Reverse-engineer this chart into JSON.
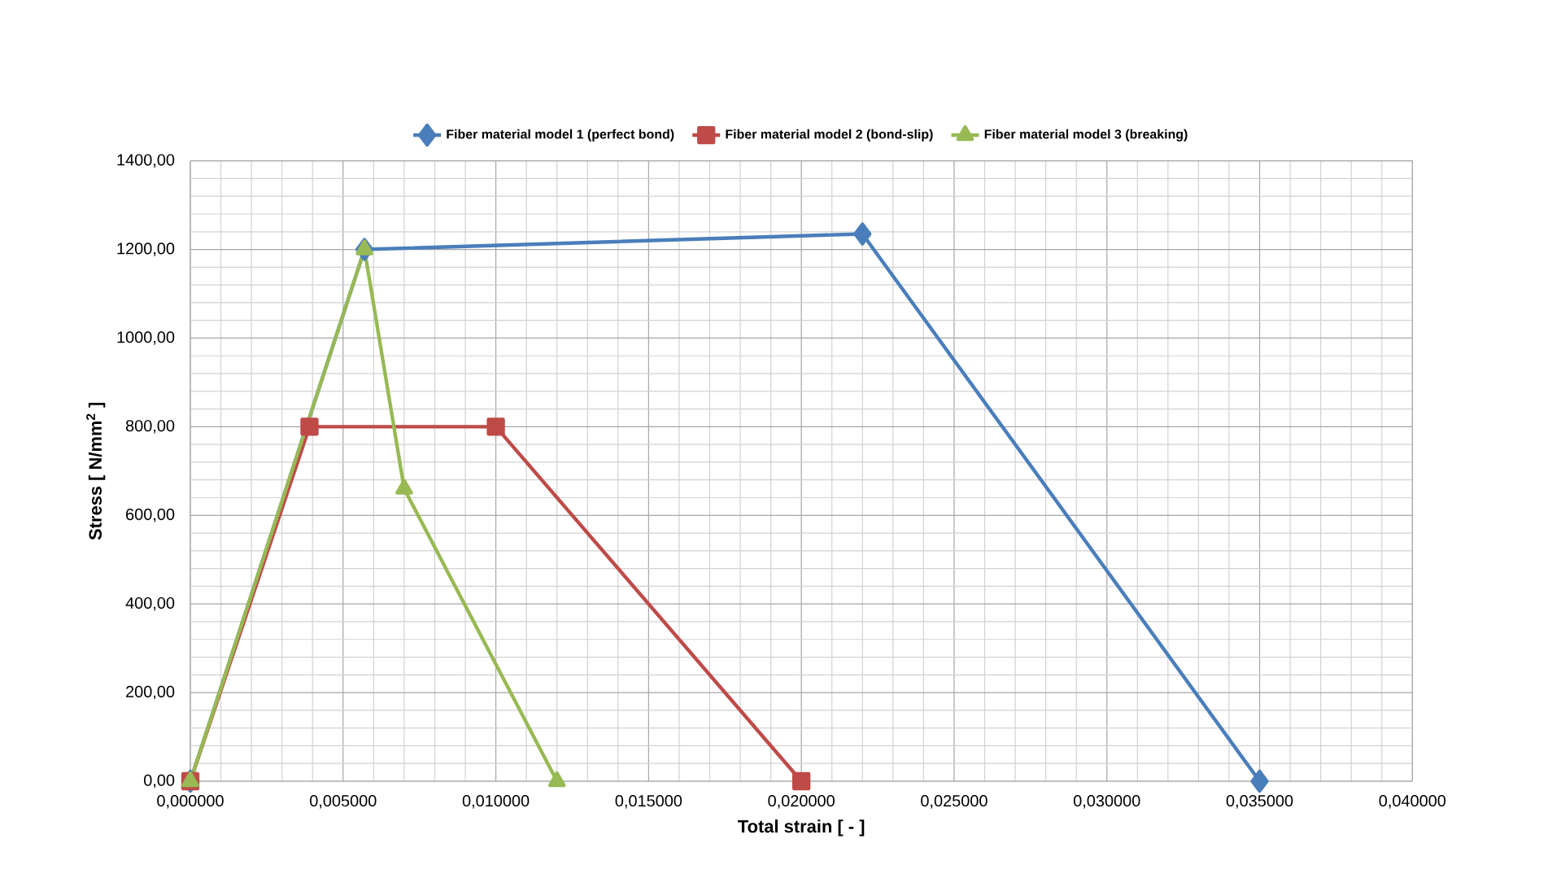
{
  "chart_data": {
    "type": "line",
    "xlabel": "Total strain  [ - ]",
    "ylabel": "Stress  [ N/mm$^{2}$ ]",
    "xlim": [
      0,
      0.04
    ],
    "ylim": [
      0,
      1400
    ],
    "xticks": [
      {
        "value": 0,
        "label": "0,000000"
      },
      {
        "value": 0.005,
        "label": "0,005000"
      },
      {
        "value": 0.01,
        "label": "0,010000"
      },
      {
        "value": 0.015,
        "label": "0,015000"
      },
      {
        "value": 0.02,
        "label": "0,020000"
      },
      {
        "value": 0.025,
        "label": "0,025000"
      },
      {
        "value": 0.03,
        "label": "0,030000"
      },
      {
        "value": 0.035,
        "label": "0,035000"
      },
      {
        "value": 0.04,
        "label": "0,040000"
      }
    ],
    "yticks": [
      {
        "value": 0,
        "label": "0,00"
      },
      {
        "value": 200,
        "label": "200,00"
      },
      {
        "value": 400,
        "label": "400,00"
      },
      {
        "value": 600,
        "label": "600,00"
      },
      {
        "value": 800,
        "label": "800,00"
      },
      {
        "value": 1000,
        "label": "1000,00"
      },
      {
        "value": 1200,
        "label": "1200,00"
      },
      {
        "value": 1400,
        "label": "1400,00"
      }
    ],
    "grid": true,
    "legend": "top",
    "line_style": "solid",
    "series": [
      {
        "name": "Fiber material model 1  (perfect bond)",
        "color": "#4a7ebb",
        "marker": "diamond",
        "x": [
          0,
          0.0057,
          0.022,
          0.035
        ],
        "values": [
          0,
          1200,
          1235,
          0
        ]
      },
      {
        "name": "Fiber material model 2  (bond-slip)",
        "color": "#be4b48",
        "marker": "square",
        "x": [
          0,
          0.0039,
          0.01,
          0.02
        ],
        "values": [
          0,
          800,
          800,
          0
        ]
      },
      {
        "name": "Fiber material model 3  (breaking)",
        "color": "#98b954",
        "marker": "triangle",
        "x": [
          0,
          0.0057,
          0.007,
          0.012
        ],
        "values": [
          0,
          1200,
          660,
          0
        ]
      }
    ]
  }
}
